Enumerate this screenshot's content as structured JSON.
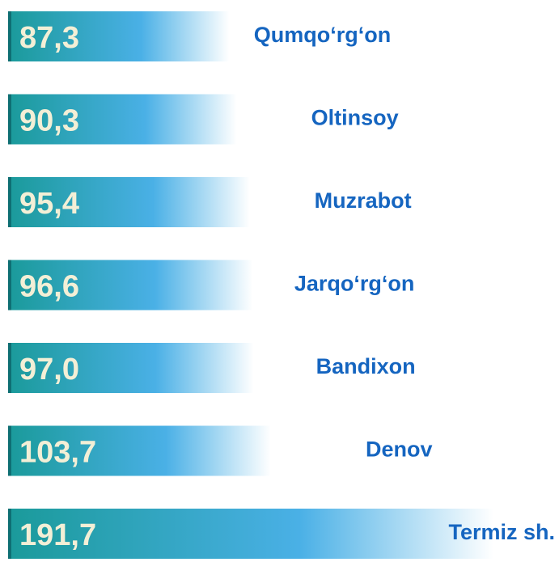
{
  "chart_data": {
    "type": "bar",
    "orientation": "horizontal",
    "categories": [
      "Qumqo‘rg‘on",
      "Oltinsoy",
      "Muzrabot",
      "Jarqo‘rg‘on",
      "Bandixon",
      "Denov",
      "Termiz sh."
    ],
    "values": [
      87.3,
      90.3,
      95.4,
      96.6,
      97.0,
      103.7,
      191.7
    ],
    "value_labels": [
      "87,3",
      "90,3",
      "95,4",
      "96,6",
      "97,0",
      "103,7",
      "191,7"
    ],
    "colors": [
      "#1a9a9a",
      "#4ab0e6",
      "#ffffff"
    ]
  }
}
